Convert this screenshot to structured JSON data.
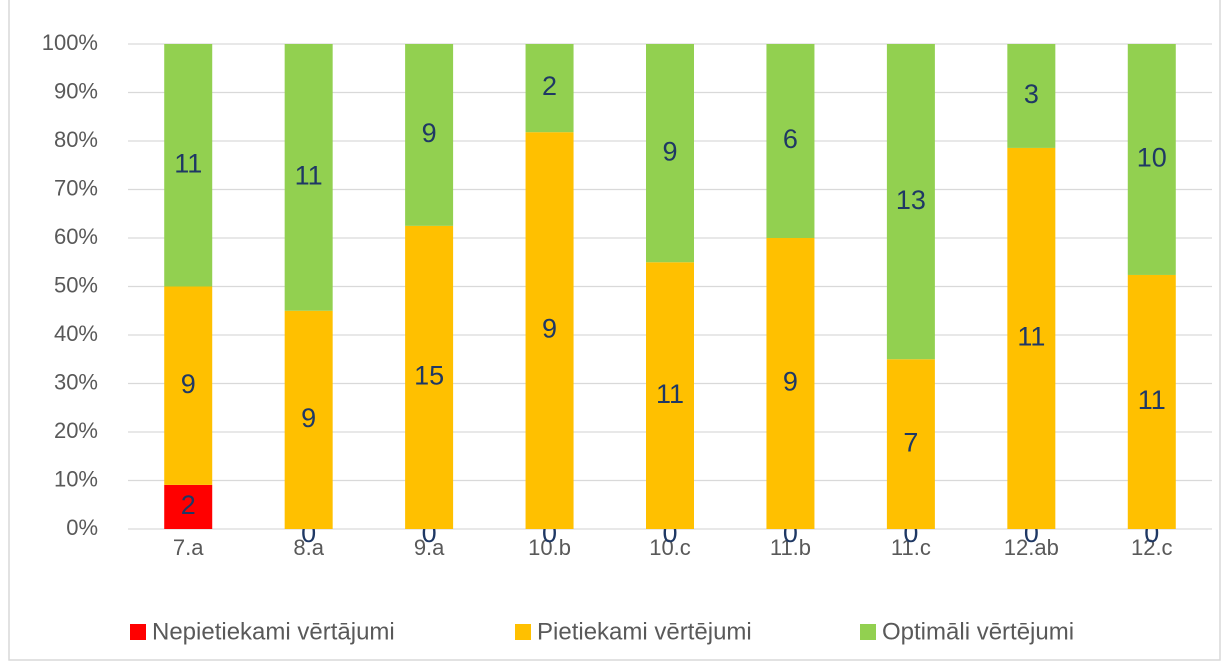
{
  "chart_data": {
    "type": "stacked_bar_percent",
    "categories": [
      "7.a",
      "8.a",
      "9.a",
      "10.b",
      "10.c",
      "11.b",
      "11.c",
      "12.ab",
      "12.c"
    ],
    "series": [
      {
        "name": "Nepietiekami vērtājumi",
        "color": "#ff0000",
        "values": [
          2,
          0,
          0,
          0,
          0,
          0,
          0,
          0,
          0
        ]
      },
      {
        "name": "Pietiekami vērtējumi",
        "color": "#ffc000",
        "values": [
          9,
          9,
          15,
          9,
          11,
          9,
          7,
          11,
          11
        ]
      },
      {
        "name": "Optimāli vērtējumi",
        "color": "#92d050",
        "values": [
          11,
          11,
          9,
          2,
          9,
          6,
          13,
          3,
          10
        ]
      }
    ],
    "ylim": [
      0,
      100
    ],
    "yticks": [
      {
        "value": 0,
        "label": "0%"
      },
      {
        "value": 10,
        "label": "10%"
      },
      {
        "value": 20,
        "label": "20%"
      },
      {
        "value": 30,
        "label": "30%"
      },
      {
        "value": 40,
        "label": "40%"
      },
      {
        "value": 50,
        "label": "50%"
      },
      {
        "value": 60,
        "label": "60%"
      },
      {
        "value": 70,
        "label": "70%"
      },
      {
        "value": 80,
        "label": "80%"
      },
      {
        "value": 90,
        "label": "90%"
      },
      {
        "value": 100,
        "label": "100%"
      }
    ],
    "grid": true,
    "legend": "bottom"
  }
}
